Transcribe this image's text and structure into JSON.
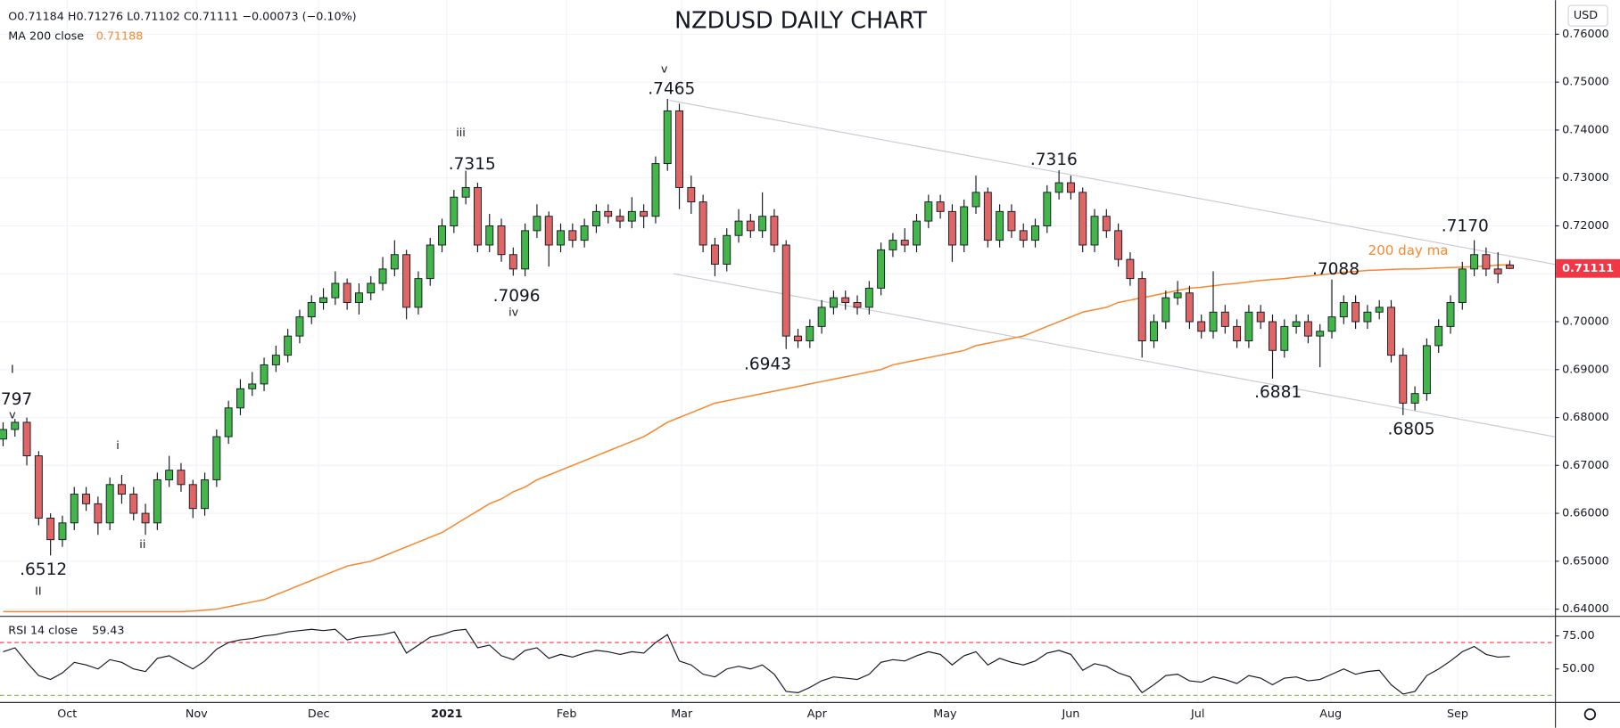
{
  "chart_data": [
    {
      "type": "candlestick",
      "title": "NZDUSD DAILY CHART",
      "legend_text": "O0.71184 H0.71276 L0.71102 C0.71111 −0.00073 (−0.10%)",
      "ma_label": "MA 200 close",
      "ma_value": 0.71188,
      "currency": "USD",
      "last_price": 0.71111,
      "up_color": "#43b649",
      "down_color": "#e06666",
      "ma_color": "#f7882f",
      "grid": true,
      "ylim": [
        0.6385,
        0.7671
      ],
      "yticks": [
        {
          "value": 0.64,
          "label": "0.64000"
        },
        {
          "value": 0.65,
          "label": "0.65000"
        },
        {
          "value": 0.66,
          "label": "0.66000"
        },
        {
          "value": 0.67,
          "label": "0.67000"
        },
        {
          "value": 0.68,
          "label": "0.68000"
        },
        {
          "value": 0.69,
          "label": "0.69000"
        },
        {
          "value": 0.7,
          "label": "0.70000"
        },
        {
          "value": 0.71,
          "label": "0.71000"
        },
        {
          "value": 0.72,
          "label": "0.72000"
        },
        {
          "value": 0.73,
          "label": "0.73000"
        },
        {
          "value": 0.74,
          "label": "0.74000"
        },
        {
          "value": 0.75,
          "label": "0.75000"
        },
        {
          "value": 0.76,
          "label": "0.76000"
        }
      ],
      "xlim": [
        -0.26,
        130.8
      ],
      "xticks": [
        {
          "value": 5.4,
          "label": "Oct"
        },
        {
          "value": 16.3,
          "label": "Nov"
        },
        {
          "value": 26.6,
          "label": "Dec"
        },
        {
          "value": 37.4,
          "label": "2021"
        },
        {
          "value": 47.5,
          "label": "Feb"
        },
        {
          "value": 57.2,
          "label": "Mar"
        },
        {
          "value": 68.6,
          "label": "Apr"
        },
        {
          "value": 79.4,
          "label": "May"
        },
        {
          "value": 90.0,
          "label": "Jun"
        },
        {
          "value": 100.7,
          "label": "Jul"
        },
        {
          "value": 111.9,
          "label": "Aug"
        },
        {
          "value": 122.6,
          "label": "Sep"
        }
      ],
      "ohlc": [
        [
          0.6755,
          0.679,
          0.674,
          0.6775
        ],
        [
          0.6775,
          0.6797,
          0.676,
          0.679
        ],
        [
          0.679,
          0.68,
          0.67,
          0.672
        ],
        [
          0.672,
          0.673,
          0.6575,
          0.659
        ],
        [
          0.659,
          0.66,
          0.6512,
          0.6545
        ],
        [
          0.6545,
          0.6595,
          0.653,
          0.658
        ],
        [
          0.658,
          0.6655,
          0.6565,
          0.664
        ],
        [
          0.664,
          0.6655,
          0.6605,
          0.662
        ],
        [
          0.662,
          0.6635,
          0.6555,
          0.658
        ],
        [
          0.658,
          0.6675,
          0.6565,
          0.666
        ],
        [
          0.666,
          0.668,
          0.662,
          0.664
        ],
        [
          0.664,
          0.6655,
          0.6585,
          0.66
        ],
        [
          0.66,
          0.662,
          0.6555,
          0.658
        ],
        [
          0.658,
          0.6685,
          0.6565,
          0.667
        ],
        [
          0.667,
          0.672,
          0.6655,
          0.669
        ],
        [
          0.669,
          0.6705,
          0.6645,
          0.666
        ],
        [
          0.666,
          0.667,
          0.659,
          0.661
        ],
        [
          0.661,
          0.6685,
          0.6595,
          0.667
        ],
        [
          0.667,
          0.6775,
          0.6655,
          0.676
        ],
        [
          0.676,
          0.6835,
          0.6745,
          0.682
        ],
        [
          0.682,
          0.688,
          0.6805,
          0.686
        ],
        [
          0.686,
          0.6895,
          0.6845,
          0.687
        ],
        [
          0.687,
          0.6925,
          0.6855,
          0.691
        ],
        [
          0.691,
          0.695,
          0.6895,
          0.693
        ],
        [
          0.693,
          0.6985,
          0.6915,
          0.697
        ],
        [
          0.697,
          0.7025,
          0.6955,
          0.701
        ],
        [
          0.701,
          0.7055,
          0.6995,
          0.704
        ],
        [
          0.704,
          0.707,
          0.7025,
          0.705
        ],
        [
          0.705,
          0.7105,
          0.7035,
          0.708
        ],
        [
          0.708,
          0.709,
          0.7025,
          0.704
        ],
        [
          0.704,
          0.708,
          0.7015,
          0.706
        ],
        [
          0.706,
          0.7095,
          0.7045,
          0.708
        ],
        [
          0.708,
          0.7135,
          0.7065,
          0.711
        ],
        [
          0.711,
          0.717,
          0.7095,
          0.714
        ],
        [
          0.714,
          0.715,
          0.7005,
          0.703
        ],
        [
          0.703,
          0.7105,
          0.7015,
          0.709
        ],
        [
          0.709,
          0.7175,
          0.7075,
          0.716
        ],
        [
          0.716,
          0.7215,
          0.7145,
          0.72
        ],
        [
          0.72,
          0.7275,
          0.7185,
          0.726
        ],
        [
          0.726,
          0.7315,
          0.7245,
          0.728
        ],
        [
          0.728,
          0.729,
          0.7145,
          0.716
        ],
        [
          0.716,
          0.7225,
          0.7145,
          0.72
        ],
        [
          0.72,
          0.7215,
          0.7125,
          0.714
        ],
        [
          0.714,
          0.7155,
          0.7096,
          0.711
        ],
        [
          0.711,
          0.7205,
          0.7095,
          0.719
        ],
        [
          0.719,
          0.7245,
          0.7175,
          0.722
        ],
        [
          0.722,
          0.723,
          0.7115,
          0.716
        ],
        [
          0.716,
          0.7205,
          0.7145,
          0.719
        ],
        [
          0.719,
          0.7205,
          0.7155,
          0.717
        ],
        [
          0.717,
          0.7215,
          0.7155,
          0.72
        ],
        [
          0.72,
          0.7245,
          0.7185,
          0.723
        ],
        [
          0.723,
          0.7245,
          0.7205,
          0.722
        ],
        [
          0.722,
          0.7235,
          0.7195,
          0.721
        ],
        [
          0.721,
          0.726,
          0.7195,
          0.723
        ],
        [
          0.723,
          0.7245,
          0.7195,
          0.722
        ],
        [
          0.722,
          0.7345,
          0.7205,
          0.733
        ],
        [
          0.733,
          0.7465,
          0.7315,
          0.744
        ],
        [
          0.744,
          0.7455,
          0.7235,
          0.728
        ],
        [
          0.728,
          0.7305,
          0.7225,
          0.725
        ],
        [
          0.725,
          0.7265,
          0.7145,
          0.716
        ],
        [
          0.716,
          0.7175,
          0.7095,
          0.712
        ],
        [
          0.712,
          0.7195,
          0.7105,
          0.718
        ],
        [
          0.718,
          0.7235,
          0.7165,
          0.721
        ],
        [
          0.721,
          0.7225,
          0.7175,
          0.719
        ],
        [
          0.719,
          0.727,
          0.7175,
          0.722
        ],
        [
          0.722,
          0.7235,
          0.7145,
          0.716
        ],
        [
          0.716,
          0.717,
          0.6943,
          0.697
        ],
        [
          0.697,
          0.6985,
          0.6945,
          0.696
        ],
        [
          0.696,
          0.7005,
          0.6945,
          0.699
        ],
        [
          0.699,
          0.7045,
          0.6975,
          0.703
        ],
        [
          0.703,
          0.7065,
          0.7015,
          0.705
        ],
        [
          0.705,
          0.7065,
          0.7025,
          0.704
        ],
        [
          0.704,
          0.7055,
          0.7015,
          0.703
        ],
        [
          0.703,
          0.7085,
          0.7015,
          0.707
        ],
        [
          0.707,
          0.7165,
          0.7055,
          0.715
        ],
        [
          0.715,
          0.7185,
          0.7135,
          0.717
        ],
        [
          0.717,
          0.7195,
          0.7145,
          0.716
        ],
        [
          0.716,
          0.7225,
          0.7145,
          0.721
        ],
        [
          0.721,
          0.7265,
          0.7195,
          0.725
        ],
        [
          0.725,
          0.7265,
          0.7215,
          0.723
        ],
        [
          0.723,
          0.7245,
          0.7125,
          0.716
        ],
        [
          0.716,
          0.7255,
          0.7145,
          0.724
        ],
        [
          0.724,
          0.7305,
          0.7225,
          0.727
        ],
        [
          0.727,
          0.728,
          0.7155,
          0.717
        ],
        [
          0.717,
          0.7245,
          0.7155,
          0.723
        ],
        [
          0.723,
          0.7245,
          0.7175,
          0.719
        ],
        [
          0.719,
          0.7205,
          0.7155,
          0.717
        ],
        [
          0.717,
          0.7215,
          0.7155,
          0.72
        ],
        [
          0.72,
          0.7285,
          0.7185,
          0.727
        ],
        [
          0.727,
          0.7316,
          0.7255,
          0.729
        ],
        [
          0.729,
          0.7305,
          0.7255,
          0.727
        ],
        [
          0.727,
          0.728,
          0.7145,
          0.716
        ],
        [
          0.716,
          0.7235,
          0.7145,
          0.722
        ],
        [
          0.722,
          0.7235,
          0.7175,
          0.719
        ],
        [
          0.719,
          0.7205,
          0.7115,
          0.713
        ],
        [
          0.713,
          0.7145,
          0.7075,
          0.709
        ],
        [
          0.709,
          0.7105,
          0.6925,
          0.696
        ],
        [
          0.696,
          0.7015,
          0.6945,
          0.7
        ],
        [
          0.7,
          0.7065,
          0.6985,
          0.705
        ],
        [
          0.705,
          0.7085,
          0.7035,
          0.706
        ],
        [
          0.706,
          0.7075,
          0.6985,
          0.7
        ],
        [
          0.7,
          0.7015,
          0.6965,
          0.698
        ],
        [
          0.698,
          0.7105,
          0.6965,
          0.702
        ],
        [
          0.702,
          0.7035,
          0.6975,
          0.699
        ],
        [
          0.699,
          0.7005,
          0.6945,
          0.696
        ],
        [
          0.696,
          0.7035,
          0.6945,
          0.702
        ],
        [
          0.702,
          0.7035,
          0.6985,
          0.7
        ],
        [
          0.7,
          0.7015,
          0.6881,
          0.694
        ],
        [
          0.694,
          0.7005,
          0.6925,
          0.699
        ],
        [
          0.699,
          0.7015,
          0.6975,
          0.7
        ],
        [
          0.7,
          0.7015,
          0.6955,
          0.697
        ],
        [
          0.697,
          0.6995,
          0.6905,
          0.698
        ],
        [
          0.698,
          0.7088,
          0.6965,
          0.701
        ],
        [
          0.701,
          0.7055,
          0.6995,
          0.704
        ],
        [
          0.704,
          0.7055,
          0.6985,
          0.7
        ],
        [
          0.7,
          0.7035,
          0.6985,
          0.702
        ],
        [
          0.702,
          0.7045,
          0.7005,
          0.703
        ],
        [
          0.703,
          0.7045,
          0.6915,
          0.693
        ],
        [
          0.693,
          0.6945,
          0.6805,
          0.683
        ],
        [
          0.683,
          0.6865,
          0.6815,
          0.685
        ],
        [
          0.685,
          0.6965,
          0.6835,
          0.695
        ],
        [
          0.695,
          0.7005,
          0.6935,
          0.699
        ],
        [
          0.699,
          0.7055,
          0.6975,
          0.704
        ],
        [
          0.704,
          0.7125,
          0.7025,
          0.711
        ],
        [
          0.711,
          0.717,
          0.7095,
          0.714
        ],
        [
          0.714,
          0.7155,
          0.7095,
          0.711
        ],
        [
          0.711,
          0.7145,
          0.708,
          0.71
        ],
        [
          0.71184,
          0.71276,
          0.71102,
          0.71111
        ]
      ],
      "ma": [
        0.6395,
        0.6395,
        0.6395,
        0.6395,
        0.6395,
        0.6395,
        0.6395,
        0.6395,
        0.6395,
        0.6395,
        0.6395,
        0.6395,
        0.6395,
        0.6395,
        0.6395,
        0.6395,
        0.6396,
        0.6398,
        0.64,
        0.6405,
        0.641,
        0.6415,
        0.642,
        0.643,
        0.644,
        0.645,
        0.646,
        0.647,
        0.648,
        0.649,
        0.6495,
        0.65,
        0.651,
        0.652,
        0.653,
        0.654,
        0.655,
        0.656,
        0.6575,
        0.659,
        0.6605,
        0.662,
        0.663,
        0.6645,
        0.6655,
        0.667,
        0.668,
        0.669,
        0.67,
        0.671,
        0.672,
        0.673,
        0.674,
        0.675,
        0.676,
        0.6775,
        0.679,
        0.68,
        0.681,
        0.682,
        0.683,
        0.6835,
        0.684,
        0.6845,
        0.685,
        0.6855,
        0.686,
        0.6865,
        0.687,
        0.6875,
        0.688,
        0.6885,
        0.689,
        0.6895,
        0.69,
        0.691,
        0.6915,
        0.692,
        0.6925,
        0.693,
        0.6935,
        0.694,
        0.695,
        0.6955,
        0.696,
        0.6965,
        0.697,
        0.698,
        0.699,
        0.7,
        0.701,
        0.702,
        0.7025,
        0.703,
        0.704,
        0.7045,
        0.705,
        0.7055,
        0.706,
        0.7065,
        0.707,
        0.7072,
        0.7075,
        0.7078,
        0.708,
        0.7083,
        0.7086,
        0.7088,
        0.709,
        0.7093,
        0.7095,
        0.7098,
        0.71,
        0.7103,
        0.7105,
        0.7107,
        0.7108,
        0.7109,
        0.711,
        0.711,
        0.7111,
        0.7112,
        0.7113,
        0.7114,
        0.7115,
        0.7116,
        0.7118,
        0.71188
      ],
      "annotations": [
        ".7465",
        "v",
        ".7315",
        "iii",
        ".7096",
        "iv",
        ".6943",
        ".7316",
        ".7088",
        ".6881",
        ".6805",
        ".7170",
        "200 day ma",
        "797",
        "I",
        "v",
        ".6512",
        "II",
        "i",
        "ii"
      ]
    },
    {
      "type": "line",
      "label": "RSI 14 close",
      "value": 59.43,
      "color": "#131722",
      "level_color": "#f23645",
      "low_level_color": "#8bc34a",
      "levels": [
        70,
        30
      ],
      "ylim": [
        25,
        89.8
      ],
      "yticks": [
        {
          "value": 75,
          "label": "75.00"
        },
        {
          "value": 50,
          "label": "50.00"
        }
      ],
      "values": [
        63,
        66,
        55,
        45,
        42,
        47,
        55,
        53,
        50,
        57,
        55,
        50,
        48,
        58,
        60,
        55,
        50,
        56,
        65,
        70,
        72,
        73,
        75,
        76,
        78,
        79,
        80,
        79,
        80,
        72,
        74,
        75,
        76,
        78,
        62,
        68,
        74,
        76,
        79,
        80,
        66,
        68,
        60,
        57,
        64,
        66,
        58,
        61,
        59,
        62,
        64,
        63,
        61,
        63,
        62,
        70,
        76,
        56,
        53,
        46,
        44,
        50,
        52,
        50,
        53,
        46,
        33,
        32,
        36,
        41,
        44,
        43,
        42,
        46,
        55,
        57,
        56,
        60,
        63,
        61,
        53,
        60,
        63,
        53,
        58,
        55,
        53,
        56,
        62,
        64,
        61,
        49,
        54,
        52,
        47,
        44,
        32,
        38,
        45,
        46,
        41,
        40,
        44,
        42,
        39,
        45,
        43,
        38,
        43,
        44,
        41,
        42,
        46,
        50,
        46,
        48,
        49,
        38,
        31,
        33,
        45,
        50,
        56,
        63,
        67,
        61,
        59,
        59.43
      ]
    }
  ]
}
